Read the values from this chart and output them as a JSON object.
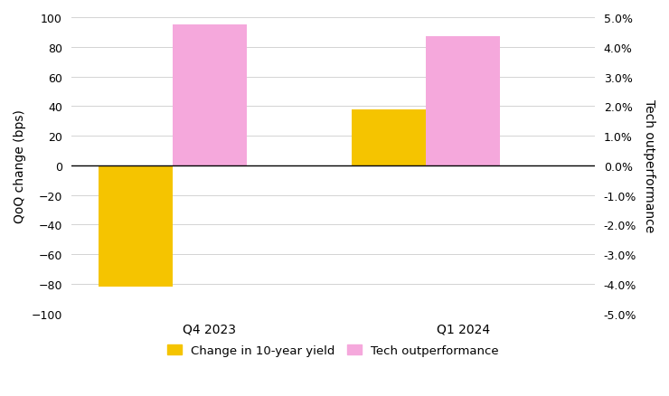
{
  "quarters": [
    "Q4 2023",
    "Q1 2024"
  ],
  "yield_change_bps": [
    -82,
    38
  ],
  "tech_outperformance_pct": [
    4.75,
    4.35
  ],
  "yield_color": "#F5C400",
  "tech_color": "#F5A8DC",
  "left_ylim": [
    -100,
    100
  ],
  "right_ylim": [
    -5.0,
    5.0
  ],
  "left_yticks": [
    -100,
    -80,
    -60,
    -40,
    -20,
    0,
    20,
    40,
    60,
    80,
    100
  ],
  "right_yticks": [
    -5.0,
    -4.0,
    -3.0,
    -2.0,
    -1.0,
    0.0,
    1.0,
    2.0,
    3.0,
    4.0,
    5.0
  ],
  "left_ylabel": "QoQ change (bps)",
  "right_ylabel": "Tech outperformance",
  "legend_yield": "Change in 10-year yield",
  "legend_tech": "Tech outperformance",
  "bar_width": 0.22,
  "group_centers": [
    0.25,
    1.0
  ],
  "xlim": [
    -0.05,
    1.5
  ],
  "xtick_positions": [
    0.36,
    1.11
  ],
  "figsize": [
    7.4,
    4.39
  ],
  "dpi": 100
}
